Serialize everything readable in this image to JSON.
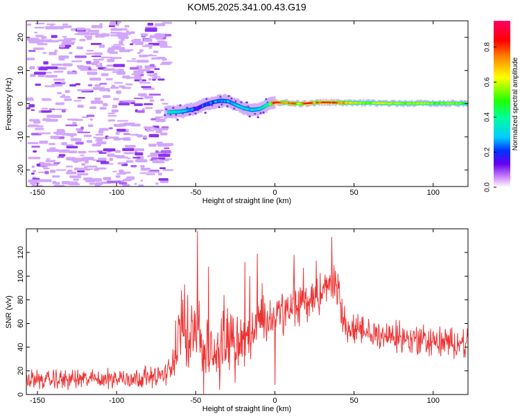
{
  "title": "KOM5.2025.341.00.43.G19",
  "chart_data": [
    {
      "type": "heatmap",
      "title": "KOM5.2025.341.00.43.G19",
      "xlabel": "Height of straight line (km)",
      "ylabel": "Frequency (Hz)",
      "xlim": [
        -157,
        122
      ],
      "ylim": [
        -25,
        25
      ],
      "xticks": [
        -150,
        -100,
        -50,
        0,
        50,
        100
      ],
      "yticks": [
        -20,
        -10,
        0,
        10,
        20
      ],
      "colorbar": {
        "label": "Normalized spectral amplitude",
        "range": [
          0.0,
          0.95
        ],
        "ticks": [
          0.0,
          0.2,
          0.4,
          0.6,
          0.8
        ]
      },
      "noise_region": {
        "x_from": -157,
        "x_to": -70,
        "amplitude": 0.1
      },
      "signal_track": [
        {
          "x": -68,
          "freq": -2.6,
          "amp": 0.38
        },
        {
          "x": -60,
          "freq": -2.4,
          "amp": 0.34
        },
        {
          "x": -55,
          "freq": -2.0,
          "amp": 0.3
        },
        {
          "x": -50,
          "freq": -1.5,
          "amp": 0.18
        },
        {
          "x": -45,
          "freq": -0.4,
          "amp": 0.22
        },
        {
          "x": -40,
          "freq": 0.4,
          "amp": 0.25
        },
        {
          "x": -35,
          "freq": 0.9,
          "amp": 0.28
        },
        {
          "x": -30,
          "freq": 0.7,
          "amp": 0.3
        },
        {
          "x": -25,
          "freq": -0.4,
          "amp": 0.32
        },
        {
          "x": -20,
          "freq": -1.4,
          "amp": 0.35
        },
        {
          "x": -15,
          "freq": -1.9,
          "amp": 0.32
        },
        {
          "x": -10,
          "freq": -1.6,
          "amp": 0.35
        },
        {
          "x": -5,
          "freq": -0.3,
          "amp": 0.4
        },
        {
          "x": 0,
          "freq": 0.4,
          "amp": 0.95
        },
        {
          "x": 5,
          "freq": 0.3,
          "amp": 0.7
        },
        {
          "x": 10,
          "freq": 0.1,
          "amp": 0.8
        },
        {
          "x": 15,
          "freq": 0.0,
          "amp": 0.65
        },
        {
          "x": 20,
          "freq": 0.1,
          "amp": 0.9
        },
        {
          "x": 25,
          "freq": 0.3,
          "amp": 0.7
        },
        {
          "x": 30,
          "freq": 0.4,
          "amp": 0.85
        },
        {
          "x": 40,
          "freq": 0.3,
          "amp": 0.75
        },
        {
          "x": 50,
          "freq": 0.2,
          "amp": 0.6
        },
        {
          "x": 60,
          "freq": 0.2,
          "amp": 0.55
        },
        {
          "x": 70,
          "freq": 0.1,
          "amp": 0.62
        },
        {
          "x": 80,
          "freq": 0.1,
          "amp": 0.55
        },
        {
          "x": 90,
          "freq": 0.1,
          "amp": 0.6
        },
        {
          "x": 100,
          "freq": 0.1,
          "amp": 0.52
        },
        {
          "x": 110,
          "freq": 0.1,
          "amp": 0.58
        },
        {
          "x": 122,
          "freq": 0.1,
          "amp": 0.5
        }
      ]
    },
    {
      "type": "line",
      "xlabel": "Height of straight line (km)",
      "ylabel": "SNR (v/v)",
      "xlim": [
        -157,
        122
      ],
      "ylim": [
        0,
        140
      ],
      "xticks": [
        -150,
        -100,
        -50,
        0,
        50,
        100
      ],
      "yticks": [
        0,
        20,
        40,
        60,
        80,
        100,
        120
      ],
      "color": "#ee3333",
      "trend": [
        {
          "x": -157,
          "snr": 12
        },
        {
          "x": -120,
          "snr": 13
        },
        {
          "x": -90,
          "snr": 14
        },
        {
          "x": -70,
          "snr": 16
        },
        {
          "x": -66,
          "snr": 22
        },
        {
          "x": -62,
          "snr": 42
        },
        {
          "x": -58,
          "snr": 52
        },
        {
          "x": -55,
          "snr": 45
        },
        {
          "x": -52,
          "snr": 60
        },
        {
          "x": -49,
          "snr": 58
        },
        {
          "x": -45,
          "snr": 34
        },
        {
          "x": -40,
          "snr": 30
        },
        {
          "x": -35,
          "snr": 40
        },
        {
          "x": -30,
          "snr": 48
        },
        {
          "x": -25,
          "snr": 50
        },
        {
          "x": -20,
          "snr": 42
        },
        {
          "x": -15,
          "snr": 52
        },
        {
          "x": -10,
          "snr": 66
        },
        {
          "x": -5,
          "snr": 60
        },
        {
          "x": 0,
          "snr": 68
        },
        {
          "x": 5,
          "snr": 68
        },
        {
          "x": 10,
          "snr": 72
        },
        {
          "x": 15,
          "snr": 76
        },
        {
          "x": 20,
          "snr": 78
        },
        {
          "x": 25,
          "snr": 82
        },
        {
          "x": 30,
          "snr": 86
        },
        {
          "x": 35,
          "snr": 94
        },
        {
          "x": 38,
          "snr": 96
        },
        {
          "x": 40,
          "snr": 84
        },
        {
          "x": 43,
          "snr": 66
        },
        {
          "x": 46,
          "snr": 56
        },
        {
          "x": 55,
          "snr": 52
        },
        {
          "x": 70,
          "snr": 50
        },
        {
          "x": 85,
          "snr": 47
        },
        {
          "x": 100,
          "snr": 45
        },
        {
          "x": 110,
          "snr": 43
        },
        {
          "x": 122,
          "snr": 44
        }
      ],
      "noise_amplitude": [
        {
          "x": -157,
          "amp": 8
        },
        {
          "x": -66,
          "amp": 9
        },
        {
          "x": -62,
          "amp": 28
        },
        {
          "x": -45,
          "amp": 30
        },
        {
          "x": -20,
          "amp": 22
        },
        {
          "x": 0,
          "amp": 20
        },
        {
          "x": 40,
          "amp": 18
        },
        {
          "x": 46,
          "amp": 14
        },
        {
          "x": 122,
          "amp": 13
        }
      ],
      "peaks": [
        {
          "x": -49,
          "snr": 138
        },
        {
          "x": -55,
          "snr": 84
        },
        {
          "x": -57,
          "snr": 93
        },
        {
          "x": -59,
          "snr": 88
        },
        {
          "x": -42,
          "snr": 108
        },
        {
          "x": -32,
          "snr": 84
        },
        {
          "x": -28,
          "snr": 68
        },
        {
          "x": -19,
          "snr": 112
        },
        {
          "x": -16,
          "snr": 100
        },
        {
          "x": -11,
          "snr": 119
        },
        {
          "x": -8,
          "snr": 94
        },
        {
          "x": 12,
          "snr": 118
        },
        {
          "x": 36,
          "snr": 133
        },
        {
          "x": 18,
          "snr": 107
        },
        {
          "x": 26,
          "snr": 113
        }
      ],
      "dips": [
        {
          "x": -45,
          "snr": 0
        },
        {
          "x": -35,
          "snr": 4
        },
        {
          "x": 0,
          "snr": 8
        },
        {
          "x": -25,
          "snr": 10
        }
      ]
    }
  ]
}
